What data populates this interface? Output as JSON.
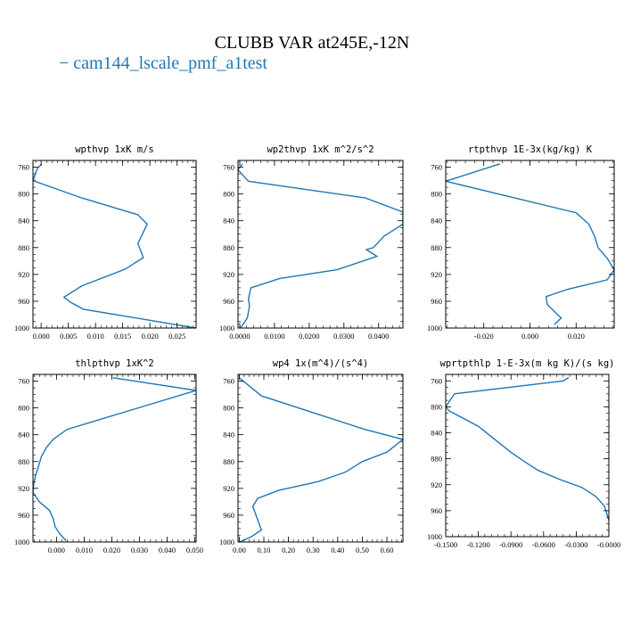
{
  "title": "CLUBB VAR at245E,-12N",
  "legend": {
    "label": "− cam144_lscale_pmf_a1test",
    "color": "#1f77b4"
  },
  "chart_data": [
    {
      "type": "line",
      "title": "wpthvp  1xK m/s",
      "xlim": [
        -0.0015,
        0.0285
      ],
      "ylim": [
        1000,
        750
      ],
      "xticks": [
        "0.000",
        "0.005",
        "0.010",
        "0.015",
        "0.020",
        "0.025"
      ],
      "xtick_values": [
        0,
        0.005,
        0.01,
        0.015,
        0.02,
        0.025
      ],
      "yticks": [
        "760",
        "800",
        "840",
        "880",
        "920",
        "960",
        "1000"
      ],
      "ytick_values": [
        760,
        800,
        840,
        880,
        920,
        960,
        1000
      ],
      "series": [
        {
          "color": "#1f77b4",
          "x": [
            0.0001,
            -0.0007,
            -0.0015,
            0.0075,
            0.0178,
            0.0195,
            0.0185,
            0.0178,
            0.0188,
            0.0155,
            0.0075,
            0.0042,
            0.0055,
            0.0078,
            0.0285
          ],
          "y": [
            755,
            762,
            780,
            806,
            831,
            845,
            862,
            874,
            895,
            912,
            937,
            954,
            962,
            972,
            1000
          ]
        }
      ]
    },
    {
      "type": "line",
      "title": "wp2thvp  1xK m^2/s^2",
      "xlim": [
        -0.0005,
        0.047
      ],
      "ylim": [
        1000,
        750
      ],
      "xticks": [
        "0.0000",
        "0.0100",
        "0.0200",
        "0.0300",
        "0.0400"
      ],
      "xtick_values": [
        0,
        0.01,
        0.02,
        0.03,
        0.04
      ],
      "yticks": [
        "760",
        "800",
        "840",
        "880",
        "920",
        "960",
        "1000"
      ],
      "ytick_values": [
        760,
        800,
        840,
        880,
        920,
        960,
        1000
      ],
      "series": [
        {
          "color": "#1f77b4",
          "x": [
            0.0008,
            -0.0005,
            0.0025,
            0.0362,
            0.047,
            0.047,
            0.0415,
            0.0385,
            0.0365,
            0.0395,
            0.028,
            0.0115,
            0.0032,
            0.0025,
            0.0028,
            0.0022,
            0.0002
          ],
          "y": [
            755,
            764,
            781,
            806,
            827,
            845,
            863,
            880,
            883,
            893,
            913,
            926,
            940,
            957,
            967,
            985,
            1000
          ]
        }
      ]
    },
    {
      "type": "line",
      "title": "rtpthvp  1E-3x(kg/kg) K",
      "xlim": [
        -0.0365,
        0.0365
      ],
      "ylim": [
        1000,
        750
      ],
      "xticks": [
        "-0.020",
        "0.000",
        "0.020"
      ],
      "xtick_values": [
        -0.02,
        0.0,
        0.02
      ],
      "yticks": [
        "760",
        "800",
        "840",
        "880",
        "920",
        "960",
        "1000"
      ],
      "ytick_values": [
        760,
        800,
        840,
        880,
        920,
        960,
        1000
      ],
      "series": [
        {
          "color": "#1f77b4",
          "x": [
            -0.013,
            -0.0365,
            0.02,
            0.0255,
            0.028,
            0.0295,
            0.0335,
            0.0365,
            0.0335,
            0.0165,
            0.007,
            0.0075,
            0.0105,
            0.0135,
            0.0105
          ],
          "y": [
            755,
            781,
            828,
            845,
            863,
            880,
            896,
            913,
            928,
            942,
            953,
            965,
            975,
            985,
            995
          ]
        }
      ]
    },
    {
      "type": "line",
      "title": "thlpthvp  1xK^2",
      "xlim": [
        -0.0085,
        0.0505
      ],
      "ylim": [
        1000,
        750
      ],
      "xticks": [
        "0.000",
        "0.010",
        "0.020",
        "0.030",
        "0.040",
        "0.050"
      ],
      "xtick_values": [
        0,
        0.01,
        0.02,
        0.03,
        0.04,
        0.05
      ],
      "yticks": [
        "760",
        "800",
        "840",
        "880",
        "920",
        "960",
        "1000"
      ],
      "ytick_values": [
        760,
        800,
        840,
        880,
        920,
        960,
        1000
      ],
      "series": [
        {
          "color": "#1f77b4",
          "x": [
            0.0205,
            0.0505,
            0.0038,
            -0.0012,
            -0.0038,
            -0.0055,
            -0.0065,
            -0.0075,
            -0.0082,
            -0.0085,
            -0.0062,
            -0.0025,
            -0.0012,
            -0.0005,
            0.0012,
            0.0035
          ],
          "y": [
            755,
            774,
            832,
            847,
            860,
            873,
            887,
            900,
            913,
            926,
            940,
            953,
            965,
            977,
            988,
            998
          ]
        }
      ]
    },
    {
      "type": "line",
      "title": "wp4  1x(m^4)/(s^4)",
      "xlim": [
        -0.005,
        0.665
      ],
      "ylim": [
        1000,
        750
      ],
      "xticks": [
        "0.00",
        "0.10",
        "0.20",
        "0.30",
        "0.40",
        "0.50",
        "0.60"
      ],
      "xtick_values": [
        0,
        0.1,
        0.2,
        0.3,
        0.4,
        0.5,
        0.6
      ],
      "yticks": [
        "760",
        "800",
        "840",
        "880",
        "920",
        "960",
        "1000"
      ],
      "ytick_values": [
        760,
        800,
        840,
        880,
        920,
        960,
        1000
      ],
      "series": [
        {
          "color": "#1f77b4",
          "x": [
            0.0,
            0.09,
            0.51,
            0.665,
            0.6,
            0.5,
            0.43,
            0.32,
            0.16,
            0.075,
            0.055,
            0.07,
            0.09,
            0.05,
            0.0
          ],
          "y": [
            755,
            782,
            832,
            847,
            866,
            880,
            896,
            910,
            923,
            935,
            947,
            962,
            982,
            992,
            1000
          ]
        }
      ]
    },
    {
      "type": "line",
      "title": "wprtpthlp  1-E-3x(m kg K)/(s kg)",
      "xlim": [
        -0.15,
        0.0
      ],
      "ylim": [
        1000,
        750
      ],
      "xticks": [
        "-0.1500",
        "-0.1200",
        "-0.0900",
        "-0.0600",
        "-0.0300",
        "-0.0000"
      ],
      "xtick_values": [
        -0.15,
        -0.12,
        -0.09,
        -0.06,
        -0.03,
        0.0
      ],
      "yticks": [
        "760",
        "800",
        "840",
        "880",
        "920",
        "960",
        "1000"
      ],
      "ytick_values": [
        760,
        800,
        840,
        880,
        920,
        960,
        1000
      ],
      "series": [
        {
          "color": "#1f77b4",
          "x": [
            -0.037,
            -0.042,
            -0.142,
            -0.15,
            -0.147,
            -0.12,
            -0.105,
            -0.09,
            -0.077,
            -0.065,
            -0.045,
            -0.025,
            -0.012,
            -0.004,
            0.0
          ],
          "y": [
            755,
            760,
            780,
            800,
            806,
            830,
            850,
            870,
            885,
            898,
            912,
            924,
            938,
            953,
            975
          ]
        }
      ]
    }
  ]
}
